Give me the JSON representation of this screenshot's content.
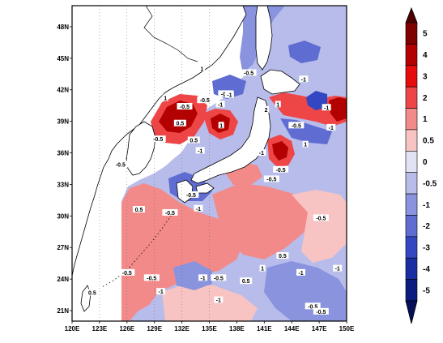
{
  "map": {
    "lon_ticks": [
      "120E",
      "123E",
      "126E",
      "129E",
      "132E",
      "135E",
      "138E",
      "141E",
      "144E",
      "147E",
      "150E"
    ],
    "lat_ticks": [
      "21N",
      "24N",
      "27N",
      "30N",
      "33N",
      "36N",
      "39N",
      "42N",
      "45N",
      "48N"
    ],
    "extent": {
      "lon": [
        120,
        150
      ],
      "lat": [
        20,
        50
      ]
    },
    "contour_labels": [
      {
        "text": "1",
        "lon": 134.2,
        "lat": 44.0
      },
      {
        "text": "-0.5",
        "lon": 139.3,
        "lat": 43.6
      },
      {
        "text": "-1",
        "lon": 145.3,
        "lat": 43.0
      },
      {
        "text": "-0.5",
        "lon": 136.8,
        "lat": 41.6
      },
      {
        "text": "-1",
        "lon": 137.2,
        "lat": 41.5
      },
      {
        "text": "1",
        "lon": 130.2,
        "lat": 41.2
      },
      {
        "text": "-0.5",
        "lon": 134.5,
        "lat": 41.0
      },
      {
        "text": "-1",
        "lon": 136.2,
        "lat": 40.6
      },
      {
        "text": "-0.5",
        "lon": 132.3,
        "lat": 40.4
      },
      {
        "text": "1",
        "lon": 142.5,
        "lat": 40.6
      },
      {
        "text": "-1",
        "lon": 147.8,
        "lat": 40.3
      },
      {
        "text": "2",
        "lon": 141.2,
        "lat": 40.1
      },
      {
        "text": "0.5",
        "lon": 131.8,
        "lat": 38.8
      },
      {
        "text": "1",
        "lon": 136.3,
        "lat": 38.6
      },
      {
        "text": "-0.5",
        "lon": 144.5,
        "lat": 38.6
      },
      {
        "text": "-1",
        "lon": 148.3,
        "lat": 38.4
      },
      {
        "text": "-0.5",
        "lon": 129.4,
        "lat": 37.3
      },
      {
        "text": "0.5",
        "lon": 133.3,
        "lat": 37.2
      },
      {
        "text": "1",
        "lon": 145.5,
        "lat": 36.8
      },
      {
        "text": "-1",
        "lon": 140.7,
        "lat": 36.0
      },
      {
        "text": "-0.5",
        "lon": 125.3,
        "lat": 34.9
      },
      {
        "text": "-1",
        "lon": 134.0,
        "lat": 36.2
      },
      {
        "text": "-0.5",
        "lon": 142.8,
        "lat": 34.4
      },
      {
        "text": "-0.5",
        "lon": 141.8,
        "lat": 33.5
      },
      {
        "text": "-0.5",
        "lon": 133.0,
        "lat": 32.0
      },
      {
        "text": "-1",
        "lon": 133.8,
        "lat": 30.7
      },
      {
        "text": "-0.5",
        "lon": 130.7,
        "lat": 30.3
      },
      {
        "text": "0.5",
        "lon": 127.3,
        "lat": 30.6
      },
      {
        "text": "-0.5",
        "lon": 147.2,
        "lat": 29.8
      },
      {
        "text": "0.5",
        "lon": 143.0,
        "lat": 26.2
      },
      {
        "text": "-0.5",
        "lon": 126.0,
        "lat": 24.6
      },
      {
        "text": "1",
        "lon": 140.8,
        "lat": 25.0
      },
      {
        "text": "-0.5",
        "lon": 128.7,
        "lat": 24.1
      },
      {
        "text": "-1",
        "lon": 134.3,
        "lat": 24.1
      },
      {
        "text": "-0.5",
        "lon": 136.0,
        "lat": 24.1
      },
      {
        "text": "0.5",
        "lon": 139.0,
        "lat": 23.8
      },
      {
        "text": "-1",
        "lon": 145.0,
        "lat": 24.6
      },
      {
        "text": "-1",
        "lon": 149.0,
        "lat": 25.0
      },
      {
        "text": "0.5",
        "lon": 122.2,
        "lat": 22.7
      },
      {
        "text": "-1",
        "lon": 129.7,
        "lat": 22.8
      },
      {
        "text": "-1",
        "lon": 136.0,
        "lat": 22.0
      },
      {
        "text": "-0.5",
        "lon": 146.3,
        "lat": 21.4
      },
      {
        "text": "-0.5",
        "lon": 147.2,
        "lat": 20.9
      }
    ]
  },
  "colorbar": {
    "labels": [
      "5",
      "4",
      "3",
      "2",
      "1",
      "0.5",
      "0",
      "-0.5",
      "-1",
      "-2",
      "-3",
      "-4",
      "-5"
    ],
    "bin_colors": [
      "#7f0000",
      "#b30000",
      "#e60c0c",
      "#ee4646",
      "#f38a8a",
      "#f8c3c3",
      "#e1e3f4",
      "#b7bcea",
      "#8993de",
      "#5f6cd2",
      "#3447c2",
      "#1a2ea4",
      "#0c1b80"
    ],
    "end_colors": {
      "top": "#4d0000",
      "bottom": "#06105a"
    }
  }
}
